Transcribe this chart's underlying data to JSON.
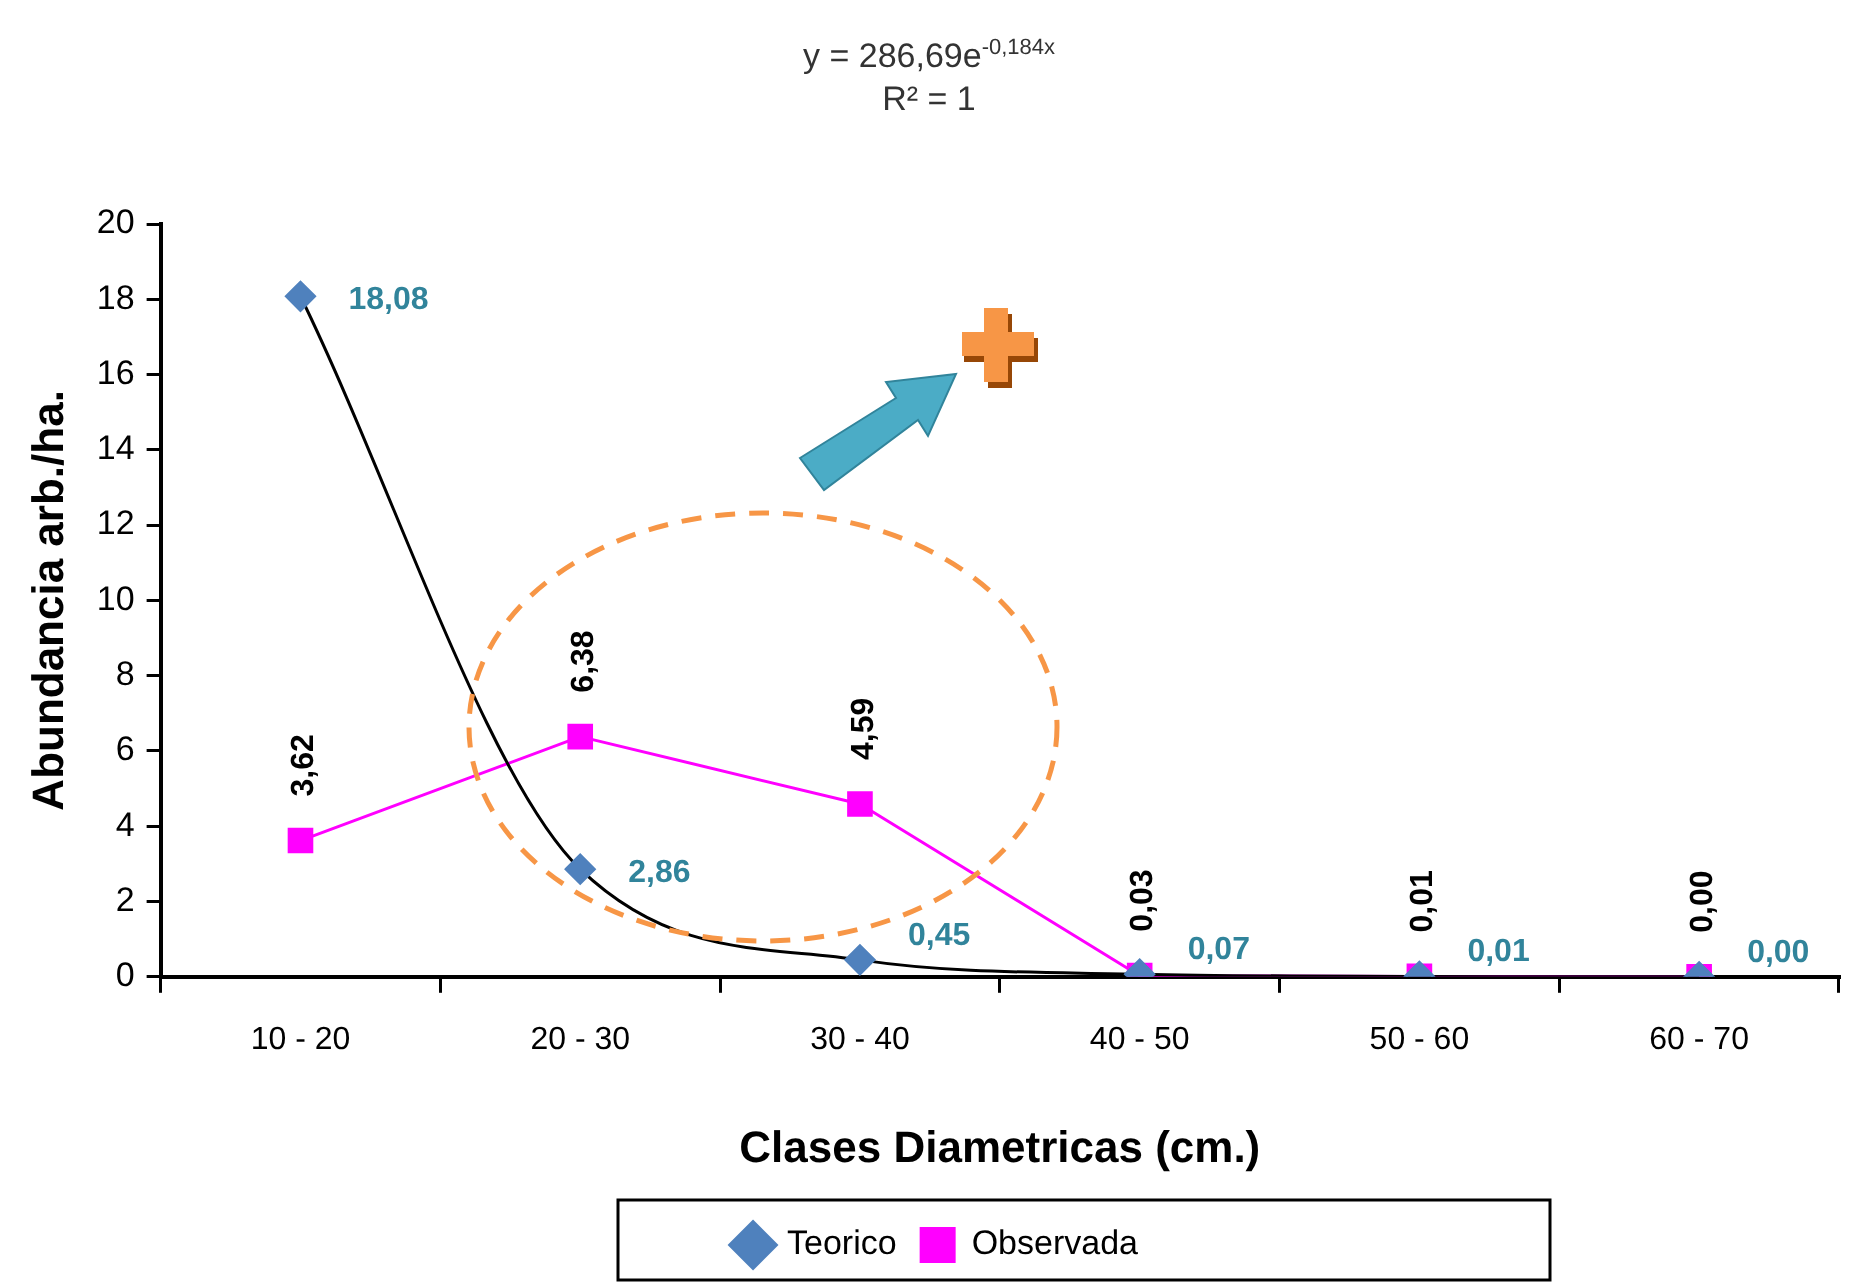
{
  "chart_data": {
    "type": "line",
    "annotations": [
      "y = 286,69e$^{-0,184x}$",
      "R² = 1"
    ],
    "xlabel": "Clases Diametricas (cm.)",
    "ylabel": "Abundancia arb./ha.",
    "categories": [
      "10 - 20",
      "20 - 30",
      "30 - 40",
      "40 - 50",
      "50 - 60",
      "60 - 70"
    ],
    "series": [
      {
        "name": "Teorico",
        "color": "#4f81bd",
        "marker": "diamond",
        "values": [
          18.08,
          2.86,
          0.45,
          0.07,
          0.01,
          0.0
        ],
        "value_labels": [
          "18,08",
          "2,86",
          "0,45",
          "0,07",
          "0,01",
          "0,00"
        ]
      },
      {
        "name": "Observada",
        "color": "#ff00ff",
        "marker": "square",
        "values": [
          3.62,
          6.38,
          4.59,
          0.03,
          0.01,
          0.0
        ],
        "value_labels": [
          "3,62",
          "6,38",
          "4,59",
          "0,03",
          "0,01",
          "0,00"
        ]
      }
    ],
    "ylim": [
      0,
      20
    ],
    "yticks": [
      0,
      2,
      4,
      6,
      8,
      10,
      12,
      14,
      16,
      18,
      20
    ],
    "grid": false,
    "legend": "bottom",
    "line_style": "solid"
  }
}
